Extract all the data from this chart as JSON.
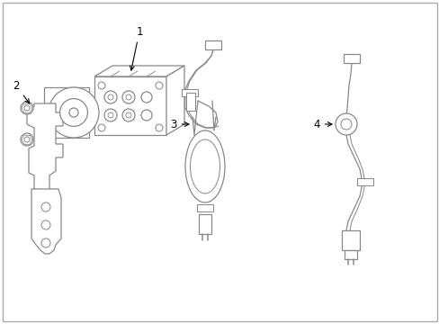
{
  "bg_color": "#ffffff",
  "line_color": "#888888",
  "label_color": "#000000",
  "label_fontsize": 8.5,
  "border_color": "#cccccc",
  "lw": 0.9
}
